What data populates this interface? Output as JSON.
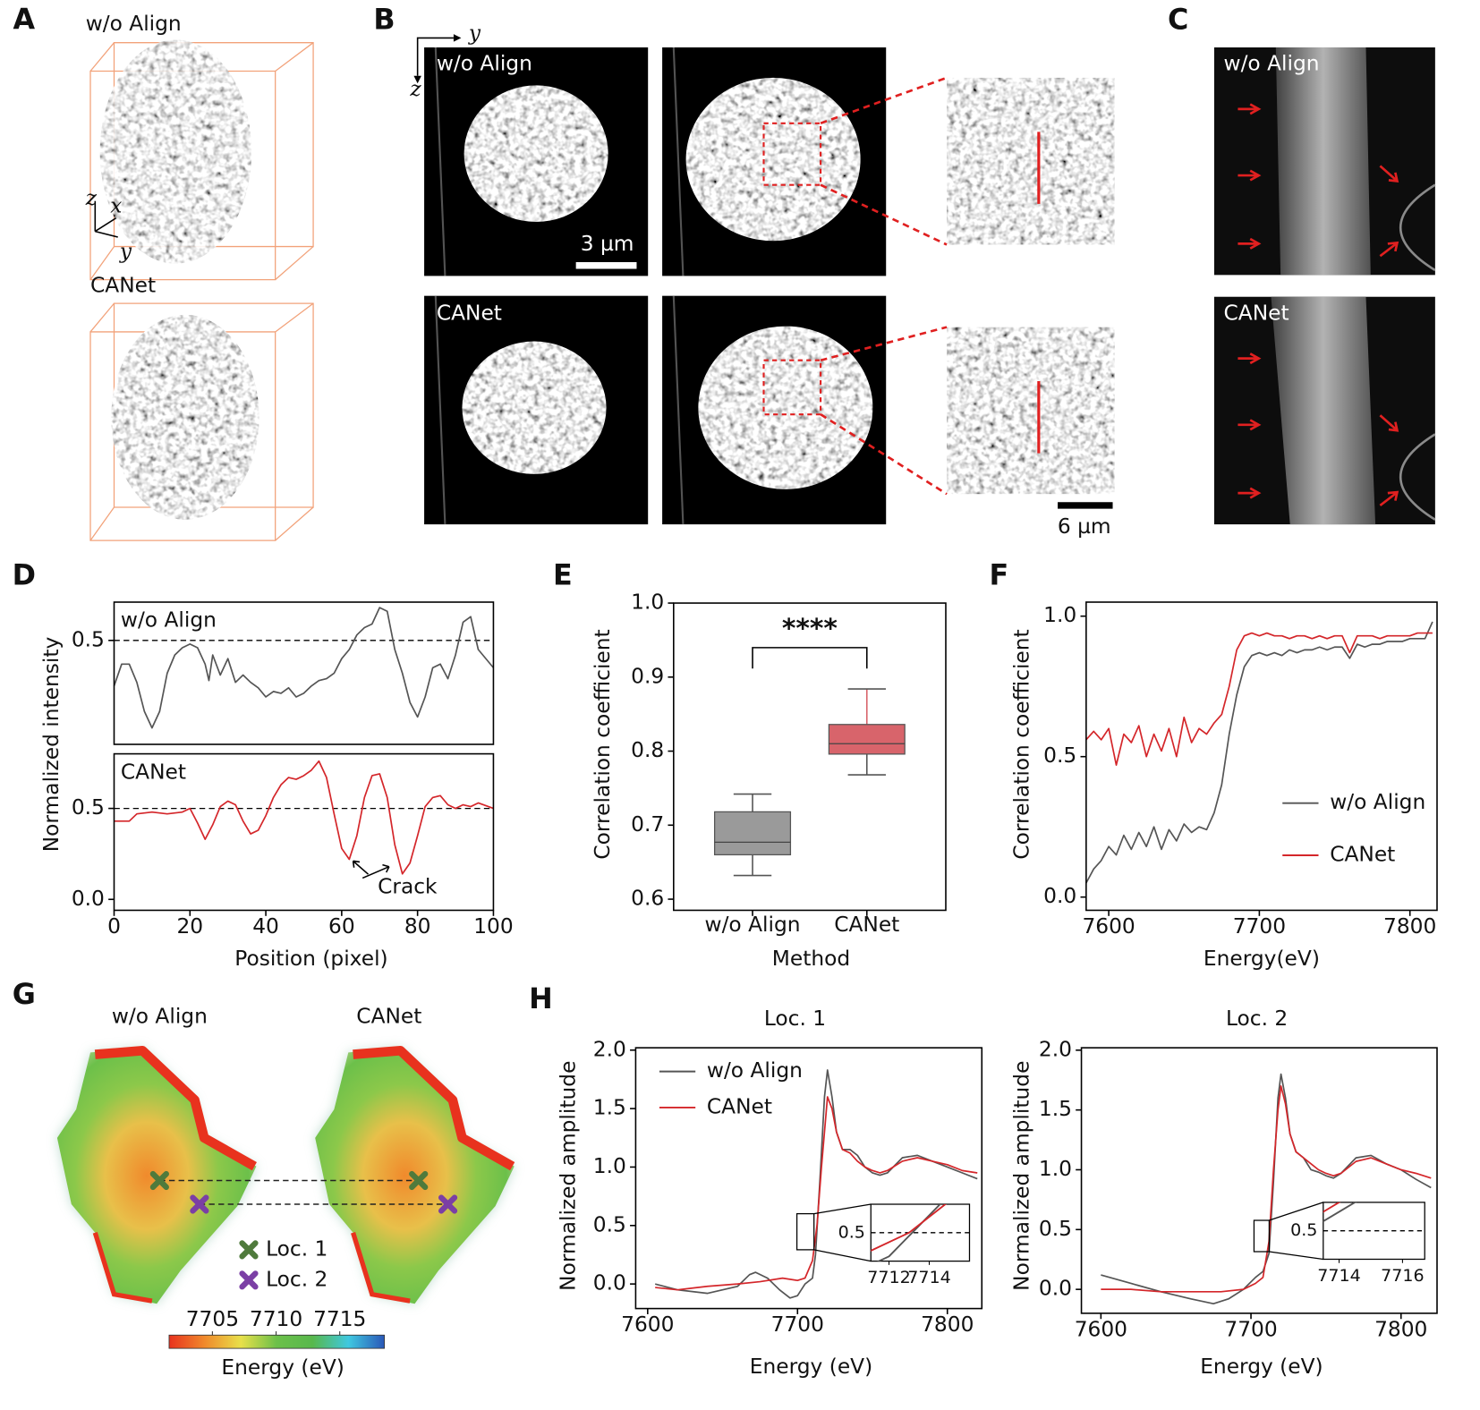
{
  "panel_labels": [
    "A",
    "B",
    "C",
    "D",
    "E",
    "F",
    "G",
    "H"
  ],
  "image_panels": {
    "A": {
      "titles": [
        "w/o Align",
        "CANet"
      ],
      "axes": [
        "z",
        "x",
        "y"
      ]
    },
    "B": {
      "titles": [
        "w/o Align",
        "CANet"
      ],
      "axes": [
        "y",
        "z"
      ],
      "scale_bars": [
        "3 µm",
        "6 µm"
      ]
    },
    "C": {
      "titles": [
        "w/o Align",
        "CANet"
      ]
    },
    "G": {
      "titles": [
        "w/o Align",
        "CANet"
      ],
      "legend": [
        {
          "name": "Loc. 1",
          "color": "#4f7a3c"
        },
        {
          "name": "Loc. 2",
          "color": "#7b3fa5"
        }
      ],
      "colorbar": {
        "label": "Energy (eV)",
        "lim": [
          7701.6,
          7718.5
        ],
        "ticks": [
          7705,
          7710,
          7715
        ],
        "colors": [
          "#e8321e",
          "#f08a2c",
          "#e8e04a",
          "#6cc04a",
          "#58b84c",
          "#3fc8e0",
          "#2a58b8"
        ]
      }
    }
  },
  "chart_data": [
    {
      "type": "line",
      "xlim": [
        0,
        100
      ],
      "ylim": [
        -0.07,
        0.71
      ],
      "yticks": [
        0.5
      ],
      "hline": 0.5,
      "legend": "upper left",
      "legend_style": "text",
      "x": [
        0,
        2,
        4,
        6,
        8,
        10,
        12,
        14,
        16,
        18,
        20,
        22,
        24,
        25,
        26,
        28,
        30,
        32,
        34,
        36,
        38,
        40,
        42,
        44,
        46,
        48,
        50,
        52,
        54,
        56,
        58,
        60,
        62,
        64,
        66,
        68,
        70,
        72,
        74,
        76,
        78,
        80,
        82,
        84,
        86,
        88,
        90,
        92,
        94,
        96,
        100
      ],
      "series": [
        {
          "name": "w/o Align",
          "color": "#555555",
          "values": [
            0.25,
            0.37,
            0.37,
            0.27,
            0.11,
            0.02,
            0.11,
            0.32,
            0.42,
            0.46,
            0.48,
            0.46,
            0.37,
            0.28,
            0.42,
            0.31,
            0.4,
            0.27,
            0.31,
            0.27,
            0.24,
            0.19,
            0.22,
            0.21,
            0.24,
            0.19,
            0.21,
            0.25,
            0.28,
            0.29,
            0.32,
            0.4,
            0.45,
            0.53,
            0.57,
            0.59,
            0.68,
            0.66,
            0.45,
            0.32,
            0.16,
            0.08,
            0.19,
            0.35,
            0.37,
            0.29,
            0.42,
            0.6,
            0.63,
            0.45,
            0.35
          ]
        }
      ]
    },
    {
      "type": "line",
      "xlim": [
        0,
        100
      ],
      "ylim": [
        -0.06,
        0.8
      ],
      "xticks": [
        0,
        20,
        40,
        60,
        80,
        100
      ],
      "yticks": [
        {
          "value": 0,
          "label": "0.0"
        },
        0.5
      ],
      "hline": 0.5,
      "legend": "upper left",
      "legend_style": "text",
      "xlabel": "Position (pixel)",
      "ylabel": "Normalized intensity",
      "annotation": "Crack",
      "x": [
        0,
        4,
        6,
        10,
        14,
        18,
        20,
        22,
        24,
        26,
        28,
        30,
        32,
        34,
        36,
        38,
        40,
        42,
        44,
        46,
        48,
        50,
        52,
        54,
        56,
        58,
        60,
        62,
        64,
        66,
        68,
        70,
        72,
        74,
        76,
        78,
        80,
        82,
        84,
        86,
        88,
        90,
        92,
        94,
        96,
        100
      ],
      "series": [
        {
          "name": "CANet",
          "color": "#d4262a",
          "values": [
            0.43,
            0.43,
            0.47,
            0.48,
            0.47,
            0.48,
            0.5,
            0.42,
            0.33,
            0.41,
            0.51,
            0.54,
            0.52,
            0.43,
            0.36,
            0.38,
            0.46,
            0.56,
            0.63,
            0.67,
            0.66,
            0.68,
            0.71,
            0.76,
            0.67,
            0.47,
            0.28,
            0.22,
            0.35,
            0.56,
            0.68,
            0.69,
            0.56,
            0.3,
            0.14,
            0.2,
            0.35,
            0.51,
            0.56,
            0.57,
            0.52,
            0.5,
            0.52,
            0.51,
            0.53,
            0.5
          ]
        }
      ]
    },
    {
      "type": "box",
      "categories": [
        "w/o Align",
        "CANet"
      ],
      "ylim": [
        0.585,
        1.0
      ],
      "yticks": [
        0.6,
        0.7,
        0.8,
        0.9,
        {
          "value": 1.0,
          "label": "1.0"
        }
      ],
      "xlabel": "Method",
      "ylabel": "Correlation coefficient",
      "annotation": "****",
      "colors": [
        "#9a9a9a",
        "#d8646b"
      ],
      "stats": [
        {
          "min": 0.632,
          "q1": 0.66,
          "median": 0.677,
          "q3": 0.718,
          "max": 0.742
        },
        {
          "min": 0.768,
          "q1": 0.796,
          "median": 0.81,
          "q3": 0.836,
          "max": 0.884
        }
      ]
    },
    {
      "type": "line",
      "xlim": [
        7585,
        7818
      ],
      "ylim": [
        -0.047,
        1.05
      ],
      "xticks": [
        7600,
        7700,
        7800
      ],
      "yticks": [
        {
          "value": 0,
          "label": "0.0"
        },
        0.5,
        {
          "value": 1.0,
          "label": "1.0"
        }
      ],
      "xlabel": "Energy(eV)",
      "ylabel": "Correlation coefficient",
      "legend": "center right",
      "x": [
        7585,
        7590,
        7595,
        7600,
        7605,
        7610,
        7615,
        7620,
        7625,
        7630,
        7635,
        7640,
        7645,
        7650,
        7655,
        7660,
        7665,
        7670,
        7675,
        7680,
        7685,
        7690,
        7695,
        7700,
        7705,
        7710,
        7715,
        7720,
        7725,
        7730,
        7735,
        7740,
        7745,
        7750,
        7755,
        7760,
        7765,
        7770,
        7775,
        7780,
        7785,
        7790,
        7795,
        7800,
        7805,
        7810,
        7815
      ],
      "series": [
        {
          "name": "w/o Align",
          "color": "#555555",
          "values": [
            0.05,
            0.1,
            0.13,
            0.18,
            0.15,
            0.22,
            0.17,
            0.23,
            0.18,
            0.25,
            0.17,
            0.24,
            0.2,
            0.26,
            0.23,
            0.25,
            0.24,
            0.3,
            0.4,
            0.58,
            0.72,
            0.82,
            0.86,
            0.87,
            0.86,
            0.87,
            0.86,
            0.88,
            0.87,
            0.88,
            0.88,
            0.89,
            0.88,
            0.89,
            0.89,
            0.85,
            0.9,
            0.89,
            0.9,
            0.9,
            0.91,
            0.91,
            0.91,
            0.92,
            0.92,
            0.92,
            0.98
          ]
        },
        {
          "name": "CANet",
          "color": "#d4262a",
          "values": [
            0.56,
            0.59,
            0.56,
            0.6,
            0.47,
            0.58,
            0.55,
            0.61,
            0.5,
            0.58,
            0.52,
            0.6,
            0.5,
            0.64,
            0.55,
            0.6,
            0.58,
            0.62,
            0.65,
            0.75,
            0.88,
            0.93,
            0.94,
            0.93,
            0.94,
            0.93,
            0.93,
            0.92,
            0.93,
            0.93,
            0.92,
            0.93,
            0.92,
            0.93,
            0.93,
            0.87,
            0.93,
            0.93,
            0.93,
            0.92,
            0.93,
            0.93,
            0.93,
            0.93,
            0.94,
            0.94,
            0.94
          ]
        }
      ]
    },
    {
      "type": "line",
      "title": "Loc. 1",
      "xlim": [
        7592,
        7823
      ],
      "ylim": [
        -0.21,
        2.02
      ],
      "xticks": [
        7600,
        7700,
        7800
      ],
      "yticks": [
        {
          "value": 0,
          "label": "0.0"
        },
        0.5,
        {
          "value": 1.0,
          "label": "1.0"
        },
        1.5,
        {
          "value": 2.0,
          "label": "2.0"
        }
      ],
      "xlabel": "Energy (eV)",
      "ylabel": "Normalized amplitude",
      "legend": "upper left",
      "inset": {
        "xlim": [
          7711.1,
          7716.0
        ],
        "ylim": [
          0.2,
          0.8
        ],
        "xticks": [
          7712,
          7714
        ],
        "yticks": [
          0.5
        ],
        "grid": true
      },
      "series": [
        {
          "name": "w/o Align",
          "color": "#555555",
          "x": [
            7605,
            7620,
            7640,
            7660,
            7668,
            7672,
            7680,
            7688,
            7695,
            7700,
            7705,
            7710,
            7712,
            7715,
            7718,
            7720,
            7723,
            7726,
            7730,
            7735,
            7740,
            7745,
            7750,
            7755,
            7760,
            7770,
            7780,
            7790,
            7800,
            7810,
            7820
          ],
          "values": [
            0,
            -0.05,
            -0.08,
            -0.02,
            0.08,
            0.1,
            0.05,
            -0.05,
            -0.12,
            -0.1,
            0,
            0.05,
            0.25,
            0.9,
            1.6,
            1.83,
            1.6,
            1.3,
            1.15,
            1.15,
            1.1,
            1.0,
            0.95,
            0.93,
            0.95,
            1.08,
            1.1,
            1.05,
            1.0,
            0.95,
            0.9
          ]
        },
        {
          "name": "CANet",
          "color": "#d4262a",
          "x": [
            7605,
            7620,
            7640,
            7660,
            7675,
            7690,
            7700,
            7705,
            7710,
            7713,
            7716,
            7720,
            7723,
            7726,
            7730,
            7735,
            7740,
            7745,
            7750,
            7755,
            7760,
            7770,
            7780,
            7790,
            7800,
            7810,
            7820
          ],
          "values": [
            -0.03,
            -0.05,
            -0.02,
            0,
            0.02,
            0.05,
            0.03,
            0.05,
            0.2,
            0.5,
            1.0,
            1.6,
            1.5,
            1.3,
            1.15,
            1.12,
            1.05,
            1.0,
            0.97,
            0.95,
            0.97,
            1.05,
            1.08,
            1.05,
            1.02,
            0.97,
            0.95
          ]
        }
      ]
    },
    {
      "type": "line",
      "title": "Loc. 2",
      "xlim": [
        7587,
        7824
      ],
      "ylim": [
        -0.2,
        2.02
      ],
      "xticks": [
        7600,
        7700,
        7800
      ],
      "yticks": [
        {
          "value": 0,
          "label": "0.0"
        },
        0.5,
        {
          "value": 1.0,
          "label": "1.0"
        },
        1.5,
        {
          "value": 2.0,
          "label": "2.0"
        }
      ],
      "xlabel": "Energy (eV)",
      "ylabel": "Normalized amplitude",
      "inset": {
        "xlim": [
          7713.5,
          7716.7
        ],
        "ylim": [
          0.2,
          0.8
        ],
        "xticks": [
          7714,
          7716
        ],
        "yticks": [
          0.5
        ],
        "grid": true
      },
      "series": [
        {
          "name": "w/o Align",
          "color": "#555555",
          "x": [
            7600,
            7620,
            7640,
            7660,
            7675,
            7685,
            7695,
            7703,
            7708,
            7712,
            7715,
            7718,
            7720,
            7723,
            7726,
            7730,
            7735,
            7740,
            7745,
            7750,
            7755,
            7760,
            7770,
            7780,
            7790,
            7800,
            7810,
            7820
          ],
          "values": [
            0.12,
            0.05,
            -0.02,
            -0.08,
            -0.12,
            -0.08,
            0,
            0.1,
            0.15,
            0.3,
            0.9,
            1.6,
            1.8,
            1.6,
            1.3,
            1.15,
            1.1,
            1.0,
            0.98,
            0.95,
            0.93,
            0.97,
            1.1,
            1.12,
            1.05,
            1.0,
            0.92,
            0.85
          ]
        },
        {
          "name": "CANet",
          "color": "#d4262a",
          "x": [
            7600,
            7620,
            7640,
            7660,
            7680,
            7695,
            7703,
            7708,
            7712,
            7715,
            7718,
            7720,
            7723,
            7726,
            7730,
            7735,
            7740,
            7745,
            7750,
            7755,
            7760,
            7770,
            7780,
            7790,
            7800,
            7810,
            7820
          ],
          "values": [
            0,
            0,
            -0.02,
            -0.02,
            -0.02,
            0,
            0.05,
            0.1,
            0.4,
            1.0,
            1.5,
            1.7,
            1.55,
            1.3,
            1.15,
            1.1,
            1.05,
            1.0,
            0.97,
            0.95,
            0.97,
            1.07,
            1.1,
            1.05,
            1.0,
            0.97,
            0.93
          ]
        }
      ]
    }
  ]
}
